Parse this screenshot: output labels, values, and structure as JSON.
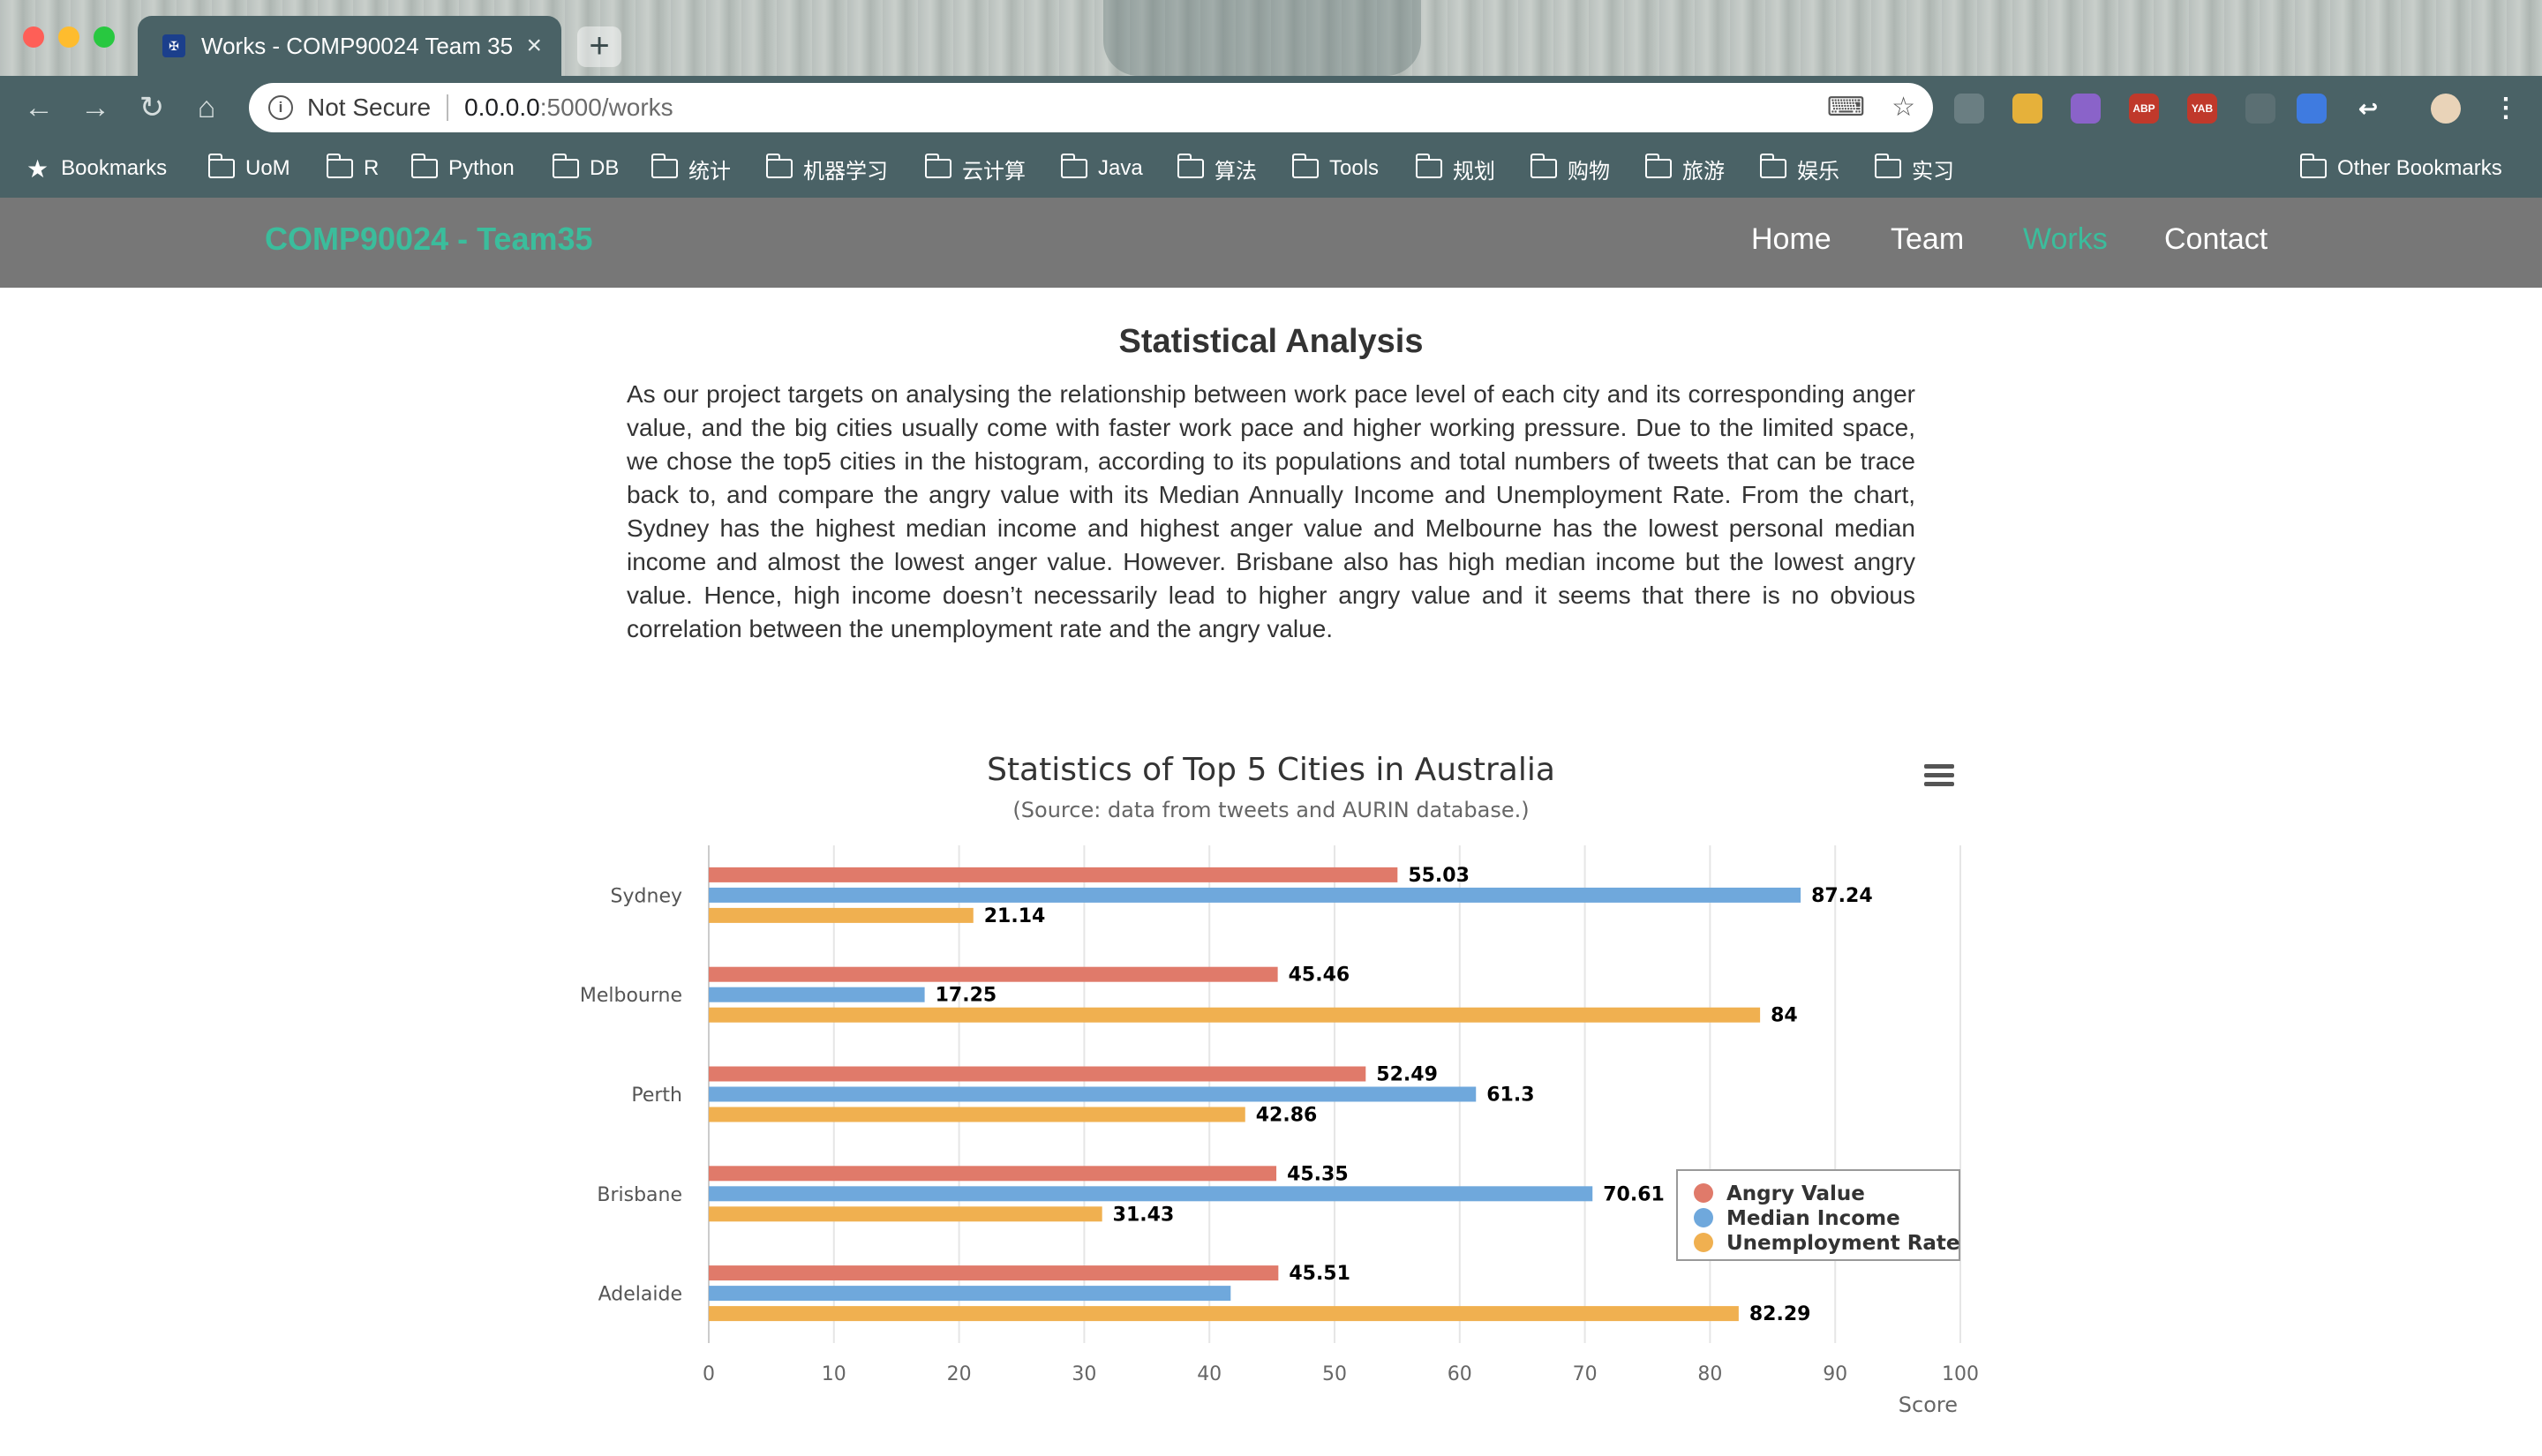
{
  "browser": {
    "tab_title": "Works - COMP90024 Team 35",
    "tab_close": "×",
    "new_tab": "+",
    "not_secure": "Not Secure",
    "url_host": "0.0.0.0",
    "url_path": ":5000/works",
    "extensions": [
      {
        "name": "ABP",
        "color": "#c0392b"
      },
      {
        "name": "YAB",
        "color": "#c0392b"
      }
    ],
    "bookmarks": [
      "Bookmarks",
      "UoM",
      "R",
      "Python",
      "DB",
      "统计",
      "机器学习",
      "云计算",
      "Java",
      "算法",
      "Tools",
      "规划",
      "购物",
      "旅游",
      "娱乐",
      "实习"
    ],
    "other_bookmarks": "Other Bookmarks"
  },
  "site": {
    "brand": "COMP90024 - Team35",
    "nav": [
      "Home",
      "Team",
      "Works",
      "Contact"
    ],
    "active_nav": "Works",
    "heading": "Statistical Analysis",
    "paragraph": "As our project targets on analysing the relationship between work pace level of each city and its corresponding anger value, and the big cities usually come with faster work pace and higher working pressure. Due to the limited space, we chose the top5 cities in the histogram, according to its populations and total numbers of tweets that can be trace back to, and compare the angry value with its Median Annually Income and Unemployment Rate. From the chart, Sydney has the highest median income and highest anger value and Melbourne has the lowest personal median income and almost the lowest anger value. However. Brisbane also has high median income but the lowest angry value. Hence, high income doesn’t necessarily lead to higher angry value and it seems that there is no obvious correlation between the unemployment rate and the angry value."
  },
  "chart_data": {
    "type": "bar",
    "orientation": "horizontal",
    "title": "Statistics of Top 5 Cities in Australia",
    "subtitle": "(Source: data from tweets and AURIN database.)",
    "categories": [
      "Sydney",
      "Melbourne",
      "Perth",
      "Brisbane",
      "Adelaide"
    ],
    "series": [
      {
        "name": "Angry Value",
        "color": "#e07a6a",
        "values": [
          55.03,
          45.46,
          52.49,
          45.35,
          45.51
        ],
        "labels": [
          "55.03",
          "45.46",
          "52.49",
          "45.35",
          "45.51"
        ]
      },
      {
        "name": "Median Income",
        "color": "#6fa8dc",
        "values": [
          87.24,
          17.25,
          61.3,
          70.61,
          41.7
        ],
        "labels": [
          "87.24",
          "17.25",
          "61.3",
          "70.61",
          ""
        ]
      },
      {
        "name": "Unemployment Rate",
        "color": "#f0b050",
        "values": [
          21.14,
          84,
          42.86,
          31.43,
          82.29
        ],
        "labels": [
          "21.14",
          "84",
          "42.86",
          "31.43",
          "82.29"
        ]
      }
    ],
    "xlim": [
      0,
      100
    ],
    "ticks": [
      "0",
      "10",
      "20",
      "30",
      "40",
      "50",
      "60",
      "70",
      "80",
      "90",
      "100"
    ],
    "value_axis_label": "Score",
    "grid": true,
    "legend_position": "bottom-right"
  }
}
